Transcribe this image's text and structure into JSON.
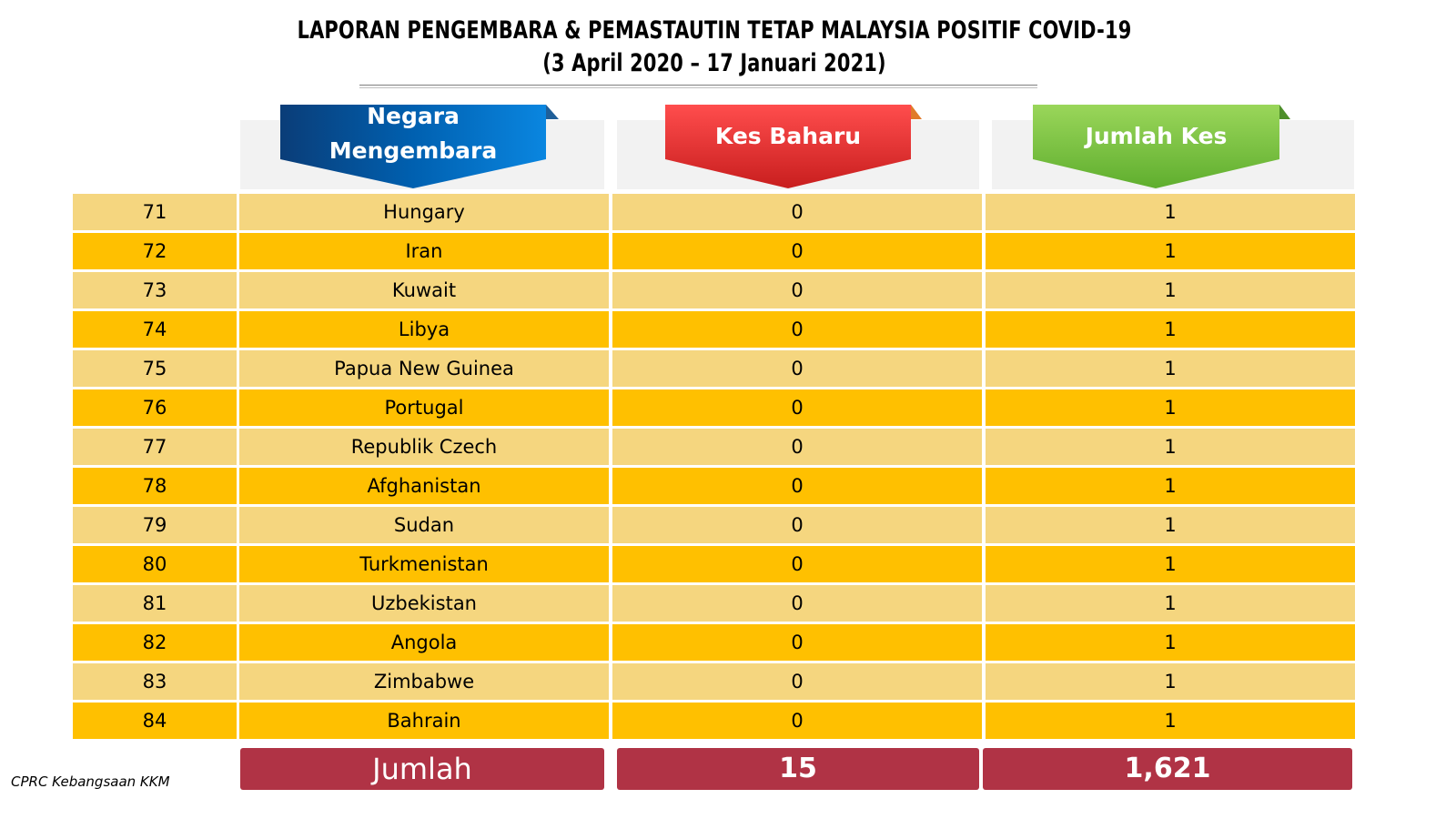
{
  "title_line1": "LAPORAN PENGEMBARA & PEMASTAUTIN TETAP MALAYSIA POSITIF COVID-19",
  "title_line2": "(3 April 2020 –  17 Januari 2021)",
  "headers": {
    "country_line1": "Negara",
    "country_line2": "Mengembara",
    "new_cases": "Kes Baharu",
    "total_cases": "Jumlah Kes"
  },
  "colors": {
    "banner_blue": "#0070c0",
    "banner_red": "#ff3b3b",
    "banner_green": "#7ac943",
    "row_light": "#f5d67f",
    "row_dark": "#ffc000",
    "total_bg": "#b03345"
  },
  "chart_data": {
    "type": "table",
    "columns": [
      "",
      "Negara Mengembara",
      "Kes Baharu",
      "Jumlah Kes"
    ],
    "rows": [
      {
        "no": "71",
        "country": "Hungary",
        "new": "0",
        "total": "1"
      },
      {
        "no": "72",
        "country": "Iran",
        "new": "0",
        "total": "1"
      },
      {
        "no": "73",
        "country": "Kuwait",
        "new": "0",
        "total": "1"
      },
      {
        "no": "74",
        "country": "Libya",
        "new": "0",
        "total": "1"
      },
      {
        "no": "75",
        "country": "Papua New Guinea",
        "new": "0",
        "total": "1"
      },
      {
        "no": "76",
        "country": "Portugal",
        "new": "0",
        "total": "1"
      },
      {
        "no": "77",
        "country": "Republik Czech",
        "new": "0",
        "total": "1"
      },
      {
        "no": "78",
        "country": "Afghanistan",
        "new": "0",
        "total": "1"
      },
      {
        "no": "79",
        "country": "Sudan",
        "new": "0",
        "total": "1"
      },
      {
        "no": "80",
        "country": "Turkmenistan",
        "new": "0",
        "total": "1"
      },
      {
        "no": "81",
        "country": "Uzbekistan",
        "new": "0",
        "total": "1"
      },
      {
        "no": "82",
        "country": "Angola",
        "new": "0",
        "total": "1"
      },
      {
        "no": "83",
        "country": "Zimbabwe",
        "new": "0",
        "total": "1"
      },
      {
        "no": "84",
        "country": "Bahrain",
        "new": "0",
        "total": "1"
      }
    ],
    "totals": {
      "label": "Jumlah",
      "new": "15",
      "total": "1,621"
    }
  },
  "footer": "CPRC Kebangsaan KKM"
}
